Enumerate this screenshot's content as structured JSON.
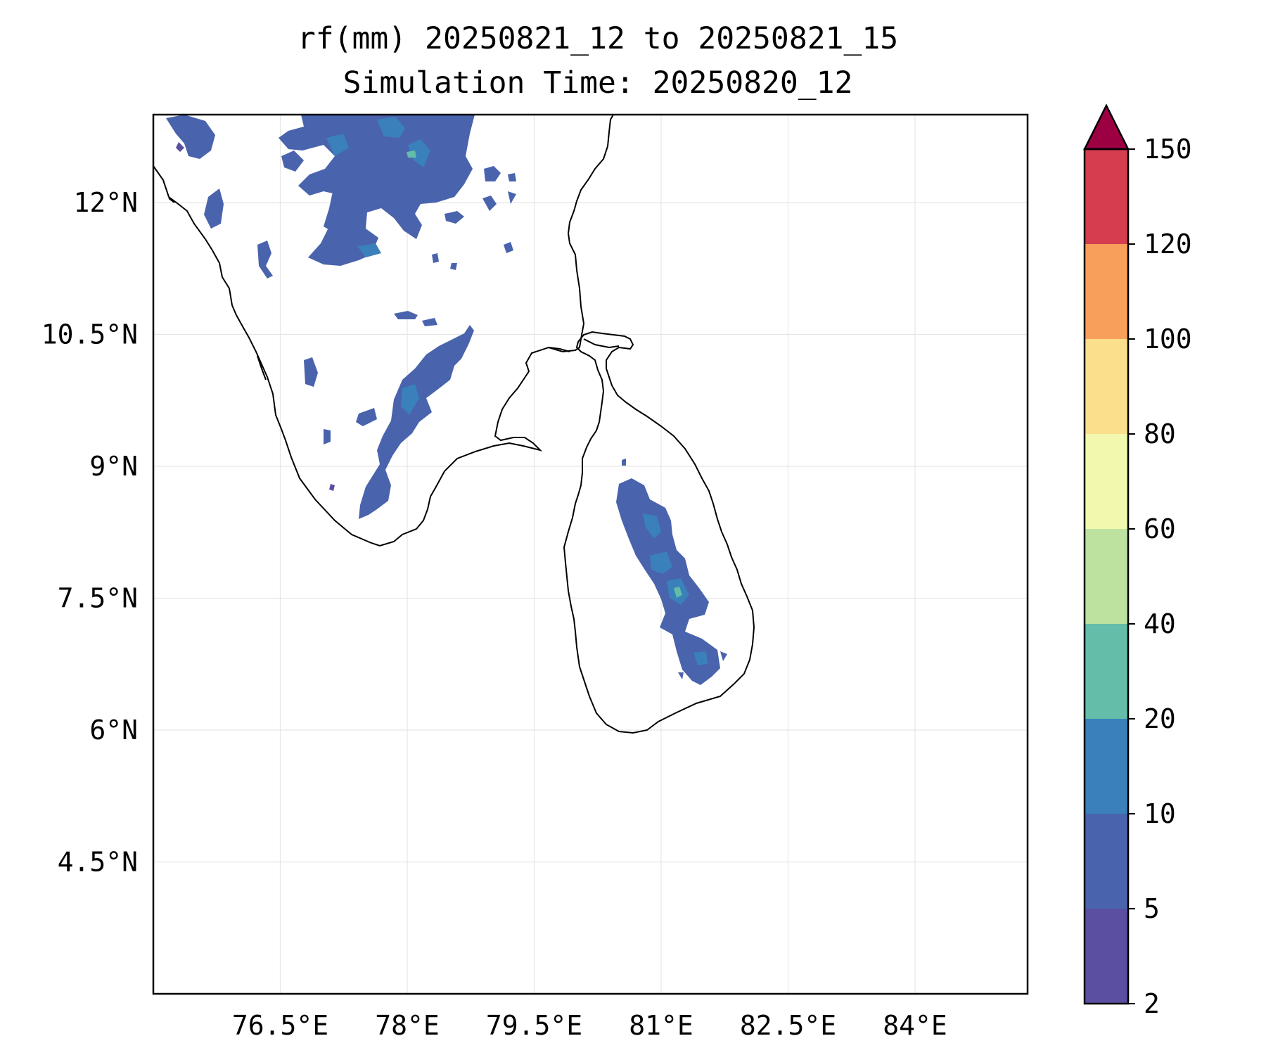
{
  "title_line1": "rf(mm) 20250821_12 to 20250821_15",
  "title_line2": "Simulation Time: 20250820_12",
  "map": {
    "lon_range": [
      75.0,
      85.33
    ],
    "lat_range": [
      3.0,
      13.0
    ],
    "x_ticks": [
      "76.5°E",
      "78°E",
      "79.5°E",
      "81°E",
      "82.5°E",
      "84°E"
    ],
    "x_tick_values": [
      76.5,
      78.0,
      79.5,
      81.0,
      82.5,
      84.0
    ],
    "y_ticks": [
      "12°N",
      "10.5°N",
      "9°N",
      "7.5°N",
      "6°N",
      "4.5°N"
    ],
    "y_tick_values": [
      12.0,
      10.5,
      9.0,
      7.5,
      6.0,
      4.5
    ],
    "coastline_color": "#000000",
    "grid_color": "#e6e6e6"
  },
  "colorbar": {
    "tick_labels": [
      "2",
      "5",
      "10",
      "20",
      "40",
      "60",
      "80",
      "100",
      "120",
      "150"
    ],
    "colors": [
      "#5a4fa0",
      "#4a63ad",
      "#3a80ba",
      "#63bda9",
      "#bde2a0",
      "#f2f8ad",
      "#fbdf8d",
      "#f99f5c",
      "#d63d4f",
      "#9c0042"
    ],
    "extend": "max"
  },
  "rain_patches": [
    {
      "name": "north-tn-cluster",
      "level": "2-5 / 5-10 mm"
    },
    {
      "name": "western-ghats-south",
      "level": "2-5 / 5-10 mm"
    },
    {
      "name": "sri-lanka-central",
      "level": "5-10 / 10-20 mm"
    }
  ]
}
